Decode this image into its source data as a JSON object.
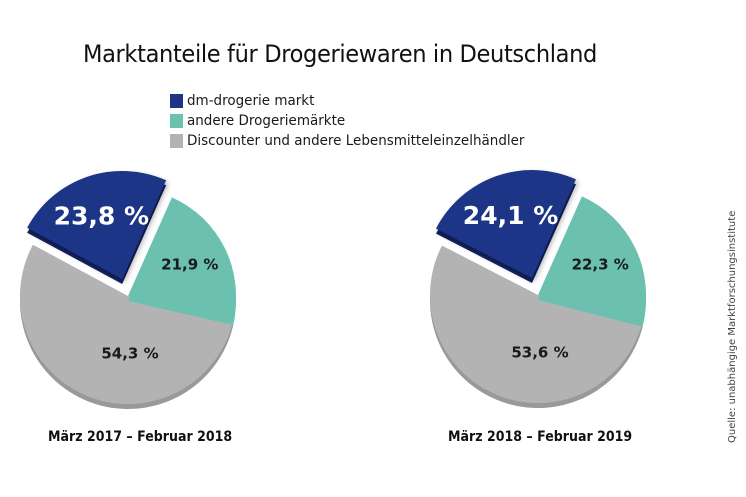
{
  "title": "Marktanteile für Drogeriewaren in Deutschland",
  "source": "Quelle: unabhängige Marktforschungsinstitute",
  "colors": {
    "dm": "#1f3487",
    "dm_side": "#142364",
    "andere": "#6bc0b0",
    "discounter": "#b3b3b3",
    "discounter_side": "#999999"
  },
  "legend": [
    {
      "label": "dm-drogerie markt",
      "color": "#1f3487"
    },
    {
      "label": "andere Drogeriemärkte",
      "color": "#6bc0b0"
    },
    {
      "label": "Discounter und andere Lebensmitteleinzelhändler",
      "color": "#b3b3b3"
    }
  ],
  "chart_data": [
    {
      "type": "pie",
      "title": "März 2017 – Februar 2018",
      "categories": [
        "dm-drogerie markt",
        "andere Drogeriemärkte",
        "Discounter und andere Lebensmitteleinzelhändler"
      ],
      "values": [
        23.8,
        21.9,
        54.3
      ],
      "labels": [
        "23,8 %",
        "21,9 %",
        "54,3 %"
      ],
      "exploded": "dm-drogerie markt",
      "legend": "top"
    },
    {
      "type": "pie",
      "title": "März 2018 – Februar 2019",
      "categories": [
        "dm-drogerie markt",
        "andere Drogeriemärkte",
        "Discounter und andere Lebensmitteleinzelhändler"
      ],
      "values": [
        24.1,
        22.3,
        53.6
      ],
      "labels": [
        "24,1 %",
        "22,3 %",
        "53,6 %"
      ],
      "exploded": "dm-drogerie markt",
      "legend": "top"
    }
  ]
}
